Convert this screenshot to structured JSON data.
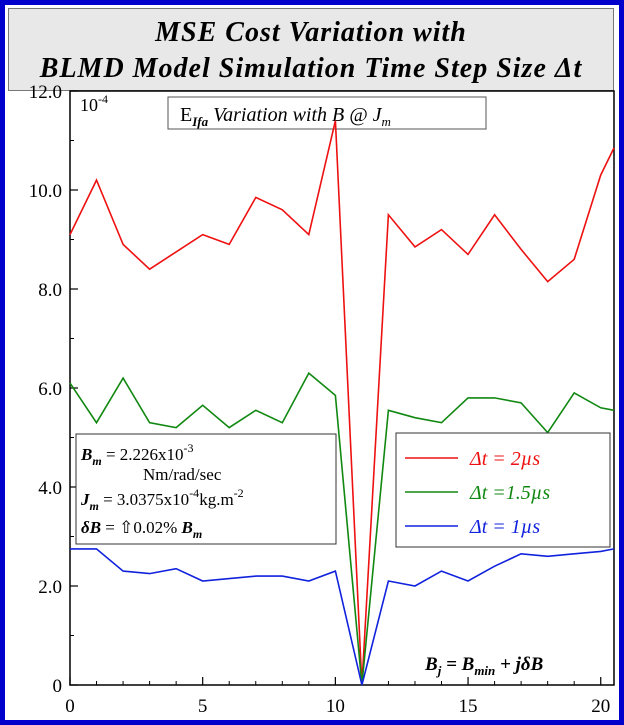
{
  "title": {
    "line1": "MSE Cost Variation with",
    "line2": "BLMD Model Simulation Time Step Size Δt"
  },
  "inset_title": {
    "main": "E",
    "sub": "Ifa",
    "rest": " Variation with B @ J",
    "sub2": "m"
  },
  "params": {
    "line1_lhs": "B",
    "line1_sub": "m",
    "line1_rhs": " = 2.226x10",
    "line1_exp": "-3",
    "line2": "Nm/rad/sec",
    "line3_lhs": "J",
    "line3_sub": "m",
    "line3_rhs": " = 3.0375x10",
    "line3_exp": "-4",
    "line3_tail": "kg.m",
    "line3_exp2": "-2",
    "line4_lhs": "δB",
    "line4_rhs": " = ⇧0.02% ",
    "line4_tail": "B",
    "line4_tail_sub": "m"
  },
  "formula": {
    "lhs": "B",
    "lhs_sub": "j",
    "eq": " = B",
    "eq_sub": "min",
    "tail": " + jδB"
  },
  "colors": {
    "red": "#ee1111",
    "green": "#118811",
    "blue": "#1122dd",
    "frame": "#0000cc"
  },
  "chart_data": {
    "type": "line",
    "y_scale_label": "10",
    "y_scale_exp": "-4",
    "xlim": [
      0,
      20.5
    ],
    "ylim": [
      0,
      12.0
    ],
    "xticks": [
      "0",
      "5",
      "10",
      "15",
      "20"
    ],
    "yticks": [
      "0",
      "2.0",
      "4.0",
      "6.0",
      "8.0",
      "10.0",
      "12.0"
    ],
    "x": [
      0,
      1,
      2,
      3,
      4,
      5,
      6,
      7,
      8,
      9,
      10,
      11,
      12,
      13,
      14,
      15,
      16,
      17,
      18,
      19,
      20,
      20.5
    ],
    "series": [
      {
        "name": "Δt = 2µs",
        "color": "#ee1111",
        "values": [
          9.1,
          10.2,
          8.9,
          8.4,
          8.75,
          9.1,
          8.9,
          9.85,
          9.6,
          9.1,
          11.4,
          0.0,
          9.5,
          8.85,
          9.2,
          8.7,
          9.5,
          8.8,
          8.15,
          8.6,
          10.3,
          10.85
        ]
      },
      {
        "name": "Δt =1.5µs",
        "color": "#118811",
        "values": [
          6.1,
          5.3,
          6.2,
          5.3,
          5.2,
          5.65,
          5.2,
          5.55,
          5.3,
          6.3,
          5.85,
          0.0,
          5.55,
          5.4,
          5.3,
          5.8,
          5.8,
          5.7,
          5.1,
          5.9,
          5.6,
          5.55
        ]
      },
      {
        "name": "Δt = 1µs",
        "color": "#1122dd",
        "values": [
          2.75,
          2.75,
          2.3,
          2.25,
          2.35,
          2.1,
          2.15,
          2.2,
          2.2,
          2.1,
          2.3,
          0.0,
          2.1,
          2.0,
          2.3,
          2.1,
          2.4,
          2.65,
          2.6,
          2.65,
          2.7,
          2.75
        ]
      }
    ]
  }
}
